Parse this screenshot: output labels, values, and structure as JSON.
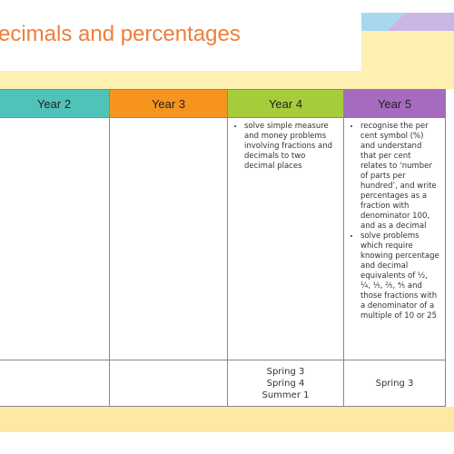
{
  "header": {
    "title": "ecimals and percentages"
  },
  "table": {
    "columns": [
      "Year 2",
      "Year 3",
      "Year 4",
      "Year 5"
    ],
    "rows": [
      [
        [],
        [],
        [
          "solve simple measure and money problems involving fractions and decimals to two decimal places"
        ],
        [
          "recognise the per cent symbol (%) and understand that per cent relates to ‘number of parts per hundred’, and write percentages as a fraction with denominator 100, and as a decimal",
          "solve problems which require knowing percentage and decimal equivalents of ½, ¼, ⅕, ⅖, ⅘ and those fractions with a denominator of a multiple of 10 or 25"
        ]
      ],
      [
        [],
        [],
        [
          "Spring 3",
          "Spring 4",
          "Summer 1"
        ],
        [
          "Spring 3"
        ]
      ]
    ]
  }
}
